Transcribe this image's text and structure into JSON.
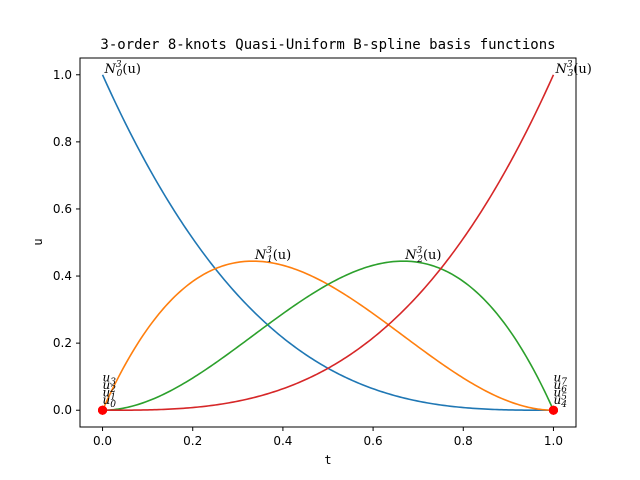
{
  "chart_data": {
    "type": "line",
    "title": "3-order 8-knots Quasi-Uniform B-spline basis functions",
    "xlabel": "t",
    "ylabel": "u",
    "xlim": [
      -0.05,
      1.05
    ],
    "ylim": [
      -0.05,
      1.05
    ],
    "xticks": [
      "0.0",
      "0.2",
      "0.4",
      "0.6",
      "0.8",
      "1.0"
    ],
    "yticks": [
      "0.0",
      "0.2",
      "0.4",
      "0.6",
      "0.8",
      "1.0"
    ],
    "grid": false,
    "legend": "none",
    "x": [
      0.0,
      0.1,
      0.2,
      0.3,
      0.4,
      0.5,
      0.6,
      0.7,
      0.8,
      0.9,
      1.0
    ],
    "series": [
      {
        "label_base": "N",
        "label_sub": "0",
        "label_sup": "3",
        "label_arg": "(u)",
        "color": "#1f77b4",
        "values": [
          1.0,
          0.729,
          0.512,
          0.343,
          0.216,
          0.125,
          0.064,
          0.027,
          0.008,
          0.001,
          0.0
        ]
      },
      {
        "label_base": "N",
        "label_sub": "1",
        "label_sup": "3",
        "label_arg": "(u)",
        "color": "#ff7f0e",
        "values": [
          0.0,
          0.243,
          0.384,
          0.441,
          0.432,
          0.375,
          0.288,
          0.189,
          0.096,
          0.027,
          0.0
        ]
      },
      {
        "label_base": "N",
        "label_sub": "2",
        "label_sup": "3",
        "label_arg": "(u)",
        "color": "#2ca02c",
        "values": [
          0.0,
          0.027,
          0.096,
          0.189,
          0.288,
          0.375,
          0.432,
          0.441,
          0.384,
          0.243,
          0.0
        ]
      },
      {
        "label_base": "N",
        "label_sub": "3",
        "label_sup": "3",
        "label_arg": "(u)",
        "color": "#d62728",
        "values": [
          0.0,
          0.001,
          0.008,
          0.027,
          0.064,
          0.125,
          0.216,
          0.343,
          0.512,
          0.729,
          1.0
        ]
      }
    ],
    "knots": {
      "color": "#ff0000",
      "points": [
        {
          "base": "u",
          "sub": "0",
          "x": 0.0,
          "y": 0.0
        },
        {
          "base": "u",
          "sub": "1",
          "x": 0.0,
          "y": 0.0
        },
        {
          "base": "u",
          "sub": "2",
          "x": 0.0,
          "y": 0.0
        },
        {
          "base": "u",
          "sub": "3",
          "x": 0.0,
          "y": 0.0
        },
        {
          "base": "u",
          "sub": "4",
          "x": 1.0,
          "y": 0.0
        },
        {
          "base": "u",
          "sub": "5",
          "x": 1.0,
          "y": 0.0
        },
        {
          "base": "u",
          "sub": "6",
          "x": 1.0,
          "y": 0.0
        },
        {
          "base": "u",
          "sub": "7",
          "x": 1.0,
          "y": 0.0
        }
      ]
    }
  }
}
